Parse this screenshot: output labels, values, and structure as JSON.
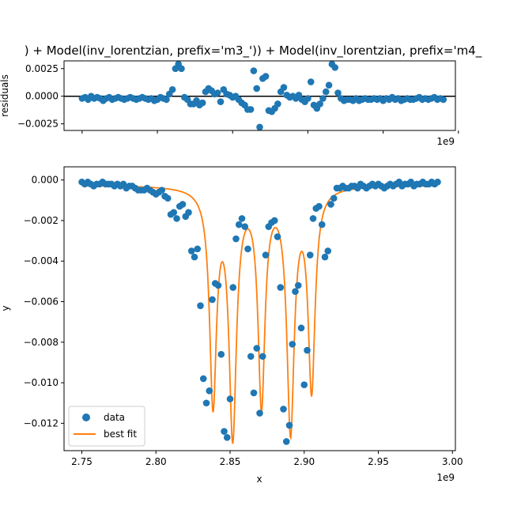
{
  "chart_data": [
    {
      "type": "scatter",
      "title": ") + Model(inv_lorentzian, prefix='m3_')) + Model(inv_lorentzian, prefix='m4_",
      "ylabel": "residuals",
      "xlabel": "",
      "x_offset_label": "1e9",
      "xlim": [
        2.738,
        2.998
      ],
      "ylim": [
        -0.0031,
        0.0032
      ],
      "yticks": [
        -0.0025,
        0.0,
        0.0025
      ],
      "ytick_labels": [
        "−0.0025",
        "0.0000",
        "0.0025"
      ],
      "xticks": [
        2.75,
        2.8,
        2.85,
        2.9,
        2.95,
        3.0
      ],
      "zero_line": true,
      "series": [
        {
          "marker_color": "#1f77b4",
          "x": [
            2.75,
            2.752,
            2.754,
            2.756,
            2.758,
            2.76,
            2.762,
            2.764,
            2.766,
            2.768,
            2.77,
            2.772,
            2.774,
            2.776,
            2.778,
            2.78,
            2.782,
            2.784,
            2.786,
            2.788,
            2.79,
            2.792,
            2.794,
            2.796,
            2.798,
            2.8,
            2.802,
            2.804,
            2.806,
            2.808,
            2.81,
            2.812,
            2.814,
            2.816,
            2.818,
            2.82,
            2.822,
            2.824,
            2.826,
            2.828,
            2.83,
            2.832,
            2.834,
            2.836,
            2.838,
            2.84,
            2.842,
            2.844,
            2.846,
            2.848,
            2.85,
            2.852,
            2.854,
            2.856,
            2.858,
            2.86,
            2.862,
            2.864,
            2.866,
            2.868,
            2.87,
            2.872,
            2.874,
            2.876,
            2.878,
            2.88,
            2.882,
            2.884,
            2.886,
            2.888,
            2.89,
            2.892,
            2.894,
            2.896,
            2.898,
            2.9,
            2.902,
            2.904,
            2.906,
            2.908,
            2.91,
            2.912,
            2.914,
            2.916,
            2.918,
            2.92,
            2.922,
            2.924,
            2.926,
            2.928,
            2.93,
            2.932,
            2.934,
            2.936,
            2.938,
            2.94,
            2.942,
            2.944,
            2.946,
            2.948,
            2.95,
            2.952,
            2.954,
            2.956,
            2.958,
            2.96,
            2.962,
            2.964,
            2.966,
            2.968,
            2.97,
            2.972,
            2.974,
            2.976,
            2.978,
            2.98,
            2.982,
            2.984,
            2.986,
            2.988,
            2.99
          ],
          "y": [
            -0.0002,
            -0.0001,
            -0.0003,
            0.0,
            -0.0002,
            -0.0001,
            -0.0002,
            -0.0004,
            -0.0002,
            -0.0001,
            -0.0003,
            -0.0002,
            -0.0001,
            -0.0002,
            -0.0003,
            -0.0002,
            -0.0001,
            -0.0002,
            -0.0003,
            -0.0002,
            -0.0001,
            -0.0002,
            -0.0003,
            -0.0002,
            -0.0004,
            -0.0003,
            -0.0001,
            -0.0002,
            -0.0003,
            0.0002,
            0.0006,
            0.0025,
            0.0029,
            0.0025,
            -0.0001,
            -0.0003,
            -0.0007,
            -0.0007,
            -0.0004,
            -0.0008,
            -0.0006,
            0.0004,
            0.0007,
            0.0005,
            0.0002,
            0.0003,
            -0.0005,
            0.0006,
            0.0002,
            0.0001,
            -0.0001,
            0.0,
            -0.0003,
            -0.0006,
            -0.0008,
            -0.0012,
            -0.0012,
            0.0023,
            0.0007,
            -0.0028,
            0.0016,
            0.0018,
            -0.0013,
            -0.0014,
            -0.0011,
            -0.0007,
            0.0004,
            0.0008,
            0.0001,
            -0.0001,
            0.0,
            -0.0002,
            0.0001,
            -0.0003,
            -0.0005,
            -0.0002,
            0.0013,
            -0.0008,
            -0.0011,
            -0.0007,
            -0.0002,
            0.0004,
            0.001,
            0.0029,
            0.0026,
            0.0003,
            -0.0002,
            -0.0004,
            -0.0003,
            -0.0003,
            -0.0004,
            -0.0002,
            -0.0004,
            -0.0003,
            -0.0002,
            -0.0003,
            -0.0003,
            -0.0002,
            -0.0003,
            -0.0002,
            -0.0004,
            -0.0002,
            -0.0003,
            -0.0001,
            -0.0003,
            -0.0002,
            -0.0004,
            -0.0003,
            -0.0002,
            -0.0003,
            -0.0003,
            -0.0002,
            -0.0001,
            -0.0003,
            -0.0002,
            -0.0003,
            -0.0002,
            -0.0001,
            -0.0003,
            -0.0002,
            -0.0003
          ]
        }
      ]
    },
    {
      "type": "scatter",
      "title": "",
      "xlabel": "x",
      "ylabel": "y",
      "x_offset_label": "1e9",
      "xlim": [
        2.738,
        3.002
      ],
      "ylim": [
        -0.01335,
        0.00065
      ],
      "xticks": [
        2.75,
        2.8,
        2.85,
        2.9,
        2.95,
        3.0
      ],
      "xtick_labels": [
        "2.75",
        "2.80",
        "2.85",
        "2.90",
        "2.95",
        "3.00"
      ],
      "yticks": [
        0.0,
        -0.002,
        -0.004,
        -0.006,
        -0.008,
        -0.01,
        -0.012
      ],
      "ytick_labels": [
        "0.000",
        "−0.002",
        "−0.004",
        "−0.006",
        "−0.008",
        "−0.010",
        "−0.012"
      ],
      "legend_position": "lower-left",
      "series": [
        {
          "name": "data",
          "marker_color": "#1f77b4",
          "x": [
            2.75,
            2.752,
            2.754,
            2.756,
            2.758,
            2.76,
            2.762,
            2.764,
            2.766,
            2.768,
            2.77,
            2.772,
            2.774,
            2.776,
            2.778,
            2.78,
            2.782,
            2.784,
            2.786,
            2.788,
            2.79,
            2.792,
            2.794,
            2.796,
            2.798,
            2.8,
            2.802,
            2.804,
            2.806,
            2.808,
            2.81,
            2.812,
            2.814,
            2.816,
            2.818,
            2.82,
            2.822,
            2.824,
            2.826,
            2.828,
            2.83,
            2.832,
            2.834,
            2.836,
            2.838,
            2.84,
            2.842,
            2.844,
            2.846,
            2.848,
            2.85,
            2.852,
            2.854,
            2.856,
            2.858,
            2.86,
            2.862,
            2.864,
            2.866,
            2.868,
            2.87,
            2.872,
            2.874,
            2.876,
            2.878,
            2.88,
            2.882,
            2.884,
            2.886,
            2.888,
            2.89,
            2.892,
            2.894,
            2.896,
            2.898,
            2.9,
            2.902,
            2.904,
            2.906,
            2.908,
            2.91,
            2.912,
            2.914,
            2.916,
            2.918,
            2.92,
            2.922,
            2.924,
            2.926,
            2.928,
            2.93,
            2.932,
            2.934,
            2.936,
            2.938,
            2.94,
            2.942,
            2.944,
            2.946,
            2.948,
            2.95,
            2.952,
            2.954,
            2.956,
            2.958,
            2.96,
            2.962,
            2.964,
            2.966,
            2.968,
            2.97,
            2.972,
            2.974,
            2.976,
            2.978,
            2.98,
            2.982,
            2.984,
            2.986,
            2.988,
            2.99
          ],
          "y": [
            -0.0001,
            -0.0002,
            -0.0001,
            -0.0002,
            -0.0003,
            -0.0002,
            -0.0002,
            -0.0001,
            -0.0002,
            -0.0002,
            -0.0002,
            -0.0003,
            -0.0002,
            -0.0003,
            -0.0002,
            -0.0004,
            -0.0003,
            -0.0003,
            -0.0004,
            -0.0005,
            -0.0005,
            -0.0005,
            -0.0004,
            -0.0005,
            -0.0006,
            -0.0007,
            -0.0006,
            -0.0005,
            -0.0008,
            -0.0009,
            -0.0017,
            -0.0016,
            -0.0019,
            -0.0013,
            -0.0012,
            -0.0018,
            -0.0016,
            -0.0035,
            -0.0038,
            -0.0034,
            -0.0062,
            -0.0098,
            -0.011,
            -0.0104,
            -0.0059,
            -0.0051,
            -0.0052,
            -0.0086,
            -0.0124,
            -0.0127,
            -0.0108,
            -0.0053,
            -0.0029,
            -0.0022,
            -0.0019,
            -0.0023,
            -0.0034,
            -0.0087,
            -0.0105,
            -0.0083,
            -0.0115,
            -0.0087,
            -0.0037,
            -0.0023,
            -0.0021,
            -0.002,
            -0.0028,
            -0.0053,
            -0.0113,
            -0.0129,
            -0.0121,
            -0.0081,
            -0.0055,
            -0.0052,
            -0.0073,
            -0.0101,
            -0.0084,
            -0.0037,
            -0.0019,
            -0.0014,
            -0.0013,
            -0.0022,
            -0.0038,
            -0.0035,
            -0.0012,
            -0.0009,
            -0.0004,
            -0.0004,
            -0.0003,
            -0.0004,
            -0.0004,
            -0.0003,
            -0.0003,
            -0.0004,
            -0.0002,
            -0.0003,
            -0.0004,
            -0.0003,
            -0.0002,
            -0.0003,
            -0.0002,
            -0.0003,
            -0.0004,
            -0.0003,
            -0.0002,
            -0.0003,
            -0.0002,
            -0.0001,
            -0.0003,
            -0.0002,
            -0.0002,
            -0.0001,
            -0.0003,
            -0.0002,
            -0.0002,
            -0.0001,
            -0.0002,
            -0.0002,
            -0.0001,
            -0.0002,
            -0.0001
          ]
        },
        {
          "name": "best fit",
          "line_color": "#ff7f0e",
          "baseline": -0.0002,
          "offset": -0.00025,
          "peaks": [
            {
              "center": 2.8385,
              "amplitude": 0.0105,
              "sigma": 0.0028
            },
            {
              "center": 2.8518,
              "amplitude": 0.012,
              "sigma": 0.003
            },
            {
              "center": 2.8712,
              "amplitude": 0.0105,
              "sigma": 0.0028
            },
            {
              "center": 2.8908,
              "amplitude": 0.0118,
              "sigma": 0.003
            },
            {
              "center": 2.905,
              "amplitude": 0.0098,
              "sigma": 0.0028
            }
          ]
        }
      ]
    }
  ]
}
